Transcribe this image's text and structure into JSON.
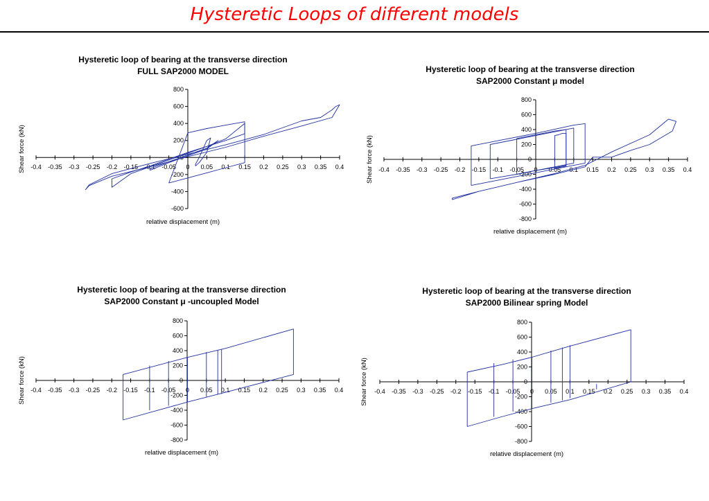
{
  "page": {
    "title": "Hysteretic Loops of different models"
  },
  "colors": {
    "title": "#ff0000",
    "curve": "#1f2fa0",
    "axis": "#000000"
  },
  "chart_data": [
    {
      "type": "line",
      "title": "Hysteretic loop of bearing at the transverse direction",
      "subtitle": "FULL SAP2000 MODEL",
      "xlabel": "relative displacement (m)",
      "ylabel": "Shear force (kN)",
      "xlim": [
        -0.4,
        0.4
      ],
      "ylim": [
        -600,
        800
      ],
      "xticks": [
        "-0.4",
        "-0.35",
        "-0.3",
        "-0.25",
        "-0.2",
        "-0.15",
        "-0.1",
        "-0.05",
        "0",
        "0.05",
        "0.1",
        "0.15",
        "0.2",
        "0.25",
        "0.3",
        "0.35",
        "0.4"
      ],
      "yticks": [
        "800",
        "600",
        "400",
        "200",
        "0",
        "-200",
        "-400",
        "-600"
      ],
      "grid": false,
      "series": [
        {
          "x": [
            -0.26,
            -0.2,
            -0.1,
            0,
            0.1,
            0.2,
            0.3,
            0.38,
            0.4,
            0.39,
            0.38,
            0.35,
            0.3,
            0.2,
            0.1,
            0,
            -0.1,
            -0.2,
            -0.26,
            -0.27,
            -0.26
          ],
          "y": [
            -330,
            -220,
            -110,
            10,
            120,
            250,
            370,
            470,
            620,
            600,
            560,
            470,
            430,
            270,
            150,
            40,
            -70,
            -190,
            -320,
            -380,
            -330
          ]
        },
        {
          "x": [
            -0.2,
            -0.15,
            -0.1,
            -0.05,
            0,
            0.05,
            0.1,
            0.15,
            0.15,
            0.1,
            0.05,
            0,
            -0.05,
            -0.1,
            -0.15,
            -0.2,
            -0.2
          ],
          "y": [
            -250,
            -170,
            -100,
            -20,
            60,
            130,
            220,
            400,
            280,
            200,
            130,
            50,
            -30,
            -110,
            -190,
            -350,
            -250
          ]
        },
        {
          "x": [
            -0.1,
            -0.05,
            0,
            0.05,
            0.08,
            0.05,
            0,
            -0.05,
            -0.1,
            -0.1
          ],
          "y": [
            -150,
            -60,
            20,
            100,
            200,
            110,
            30,
            -50,
            -130,
            -150
          ]
        },
        {
          "x": [
            0.02,
            0.03,
            0.04,
            0.05,
            0.06,
            0.05,
            0.04,
            0.03,
            0.02,
            0.02
          ],
          "y": [
            -100,
            -60,
            0,
            60,
            230,
            200,
            100,
            0,
            -80,
            -100
          ]
        },
        {
          "x": [
            -0.05,
            0,
            0.05,
            0.1,
            0.15,
            0.15,
            0.1,
            0.05,
            0,
            -0.05
          ],
          "y": [
            -300,
            -240,
            -180,
            -120,
            -60,
            420,
            380,
            340,
            290,
            -300
          ]
        }
      ]
    },
    {
      "type": "line",
      "title": "Hysteretic loop of bearing at the transverse direction",
      "subtitle": "SAP2000 Constant μ model",
      "xlabel": "relative displacement (m)",
      "ylabel": "Shear force (kN)",
      "xlim": [
        -0.4,
        0.4
      ],
      "ylim": [
        -800,
        800
      ],
      "xticks": [
        "-0.4",
        "-0.35",
        "-0.3",
        "-0.25",
        "-0.2",
        "-0.15",
        "-0.1",
        "-0.05",
        "0",
        "0.05",
        "0.1",
        "0.15",
        "0.2",
        "0.25",
        "0.3",
        "0.35",
        "0.4"
      ],
      "yticks": [
        "800",
        "600",
        "400",
        "200",
        "0",
        "-200",
        "-400",
        "-600",
        "-800"
      ],
      "grid": false,
      "series": [
        {
          "x": [
            -0.22,
            -0.15,
            -0.05,
            0.05,
            0.13,
            0.2,
            0.3,
            0.35,
            0.37,
            0.36,
            0.3,
            0.25,
            0.2,
            0.15,
            0.13,
            0.05,
            -0.05,
            -0.15,
            -0.22,
            -0.22
          ],
          "y": [
            -540,
            -430,
            -310,
            -190,
            -80,
            100,
            330,
            540,
            510,
            380,
            200,
            120,
            30,
            30,
            -100,
            -200,
            -310,
            -430,
            -520,
            -540
          ]
        },
        {
          "x": [
            -0.17,
            -0.1,
            0,
            0.1,
            0.13,
            0.13,
            0.1,
            0,
            -0.1,
            -0.17,
            -0.17
          ],
          "y": [
            -350,
            -280,
            -180,
            -80,
            -50,
            480,
            460,
            350,
            250,
            180,
            -350
          ]
        },
        {
          "x": [
            -0.12,
            -0.05,
            0,
            0.05,
            0.1,
            0.1,
            0.05,
            0,
            -0.05,
            -0.12,
            -0.12
          ],
          "y": [
            -260,
            -200,
            -150,
            -100,
            -50,
            420,
            370,
            320,
            270,
            200,
            -260
          ]
        },
        {
          "x": [
            -0.05,
            0,
            0.05,
            0.08,
            0.08,
            0.05,
            0,
            -0.05,
            -0.05
          ],
          "y": [
            -200,
            -150,
            -110,
            -80,
            400,
            380,
            330,
            280,
            -200
          ]
        },
        {
          "x": [
            0.05,
            0.06,
            0.07,
            0.08,
            0.08,
            0.07,
            0.06,
            0.05,
            0.05
          ],
          "y": [
            -120,
            -110,
            -100,
            -90,
            350,
            350,
            330,
            320,
            -120
          ]
        }
      ]
    },
    {
      "type": "line",
      "title": "Hysteretic loop of bearing at the transverse direction",
      "subtitle": "SAP2000 Constant μ -uncoupled Model",
      "xlabel": "relative displacement (m)",
      "ylabel": "Shear force (kN)",
      "xlim": [
        -0.4,
        0.4
      ],
      "ylim": [
        -800,
        800
      ],
      "xticks": [
        "-0.4",
        "-0.35",
        "-0.3",
        "-0.25",
        "-0.2",
        "-0.15",
        "-0.1",
        "-0.05",
        "0",
        "0.05",
        "0.1",
        "0.15",
        "0.2",
        "0.25",
        "0.3",
        "0.35",
        "0.4"
      ],
      "yticks": [
        "800",
        "600",
        "400",
        "200",
        "0",
        "-200",
        "-400",
        "-600",
        "-800"
      ],
      "grid": false,
      "series": [
        {
          "x": [
            -0.17,
            0,
            0.1,
            0.28,
            0.28,
            0.1,
            0,
            -0.17,
            -0.17
          ],
          "y": [
            80,
            310,
            430,
            690,
            80,
            -160,
            -290,
            -530,
            80
          ]
        },
        {
          "x": [
            -0.1,
            -0.1
          ],
          "y": [
            -400,
            200
          ]
        },
        {
          "x": [
            -0.05,
            -0.05
          ],
          "y": [
            -340,
            260
          ]
        },
        {
          "x": [
            0,
            0
          ],
          "y": [
            -290,
            310
          ]
        },
        {
          "x": [
            0.05,
            0.05
          ],
          "y": [
            -220,
            380
          ]
        },
        {
          "x": [
            0.08,
            0.08
          ],
          "y": [
            -190,
            410
          ]
        },
        {
          "x": [
            0.09,
            0.09
          ],
          "y": [
            -180,
            420
          ]
        }
      ]
    },
    {
      "type": "line",
      "title": "Hysteretic loop of bearing at the transverse direction",
      "subtitle": "SAP2000 Bilinear spring Model",
      "xlabel": "relative displacement (m)",
      "ylabel": "Shear force (kN)",
      "xlim": [
        -0.4,
        0.4
      ],
      "ylim": [
        -800,
        800
      ],
      "xticks": [
        "-0.4",
        "-0.35",
        "-0.3",
        "-0.25",
        "-0.2",
        "-0.15",
        "-0.1",
        "-0.05",
        "0",
        "0.05",
        "0.1",
        "0.15",
        "0.2",
        "0.25",
        "0.3",
        "0.35",
        "0.4"
      ],
      "yticks": [
        "800",
        "600",
        "400",
        "200",
        "0",
        "-200",
        "-400",
        "-600",
        "-800"
      ],
      "grid": false,
      "series": [
        {
          "x": [
            -0.17,
            -0.08,
            0,
            0.1,
            0.26,
            0.26,
            0.1,
            0,
            -0.08,
            -0.17,
            -0.17
          ],
          "y": [
            130,
            230,
            330,
            480,
            700,
            0,
            -240,
            -360,
            -470,
            -600,
            130
          ]
        },
        {
          "x": [
            -0.1,
            -0.1
          ],
          "y": [
            -470,
            250
          ]
        },
        {
          "x": [
            -0.05,
            -0.05
          ],
          "y": [
            -400,
            300
          ]
        },
        {
          "x": [
            0,
            0
          ],
          "y": [
            -360,
            340
          ]
        },
        {
          "x": [
            0.05,
            0.05
          ],
          "y": [
            -280,
            420
          ]
        },
        {
          "x": [
            0.08,
            0.08
          ],
          "y": [
            -250,
            460
          ]
        },
        {
          "x": [
            0.1,
            0.1
          ],
          "y": [
            -220,
            490
          ]
        },
        {
          "x": [
            0.17,
            0.17
          ],
          "y": [
            -100,
            -30
          ]
        }
      ]
    }
  ]
}
